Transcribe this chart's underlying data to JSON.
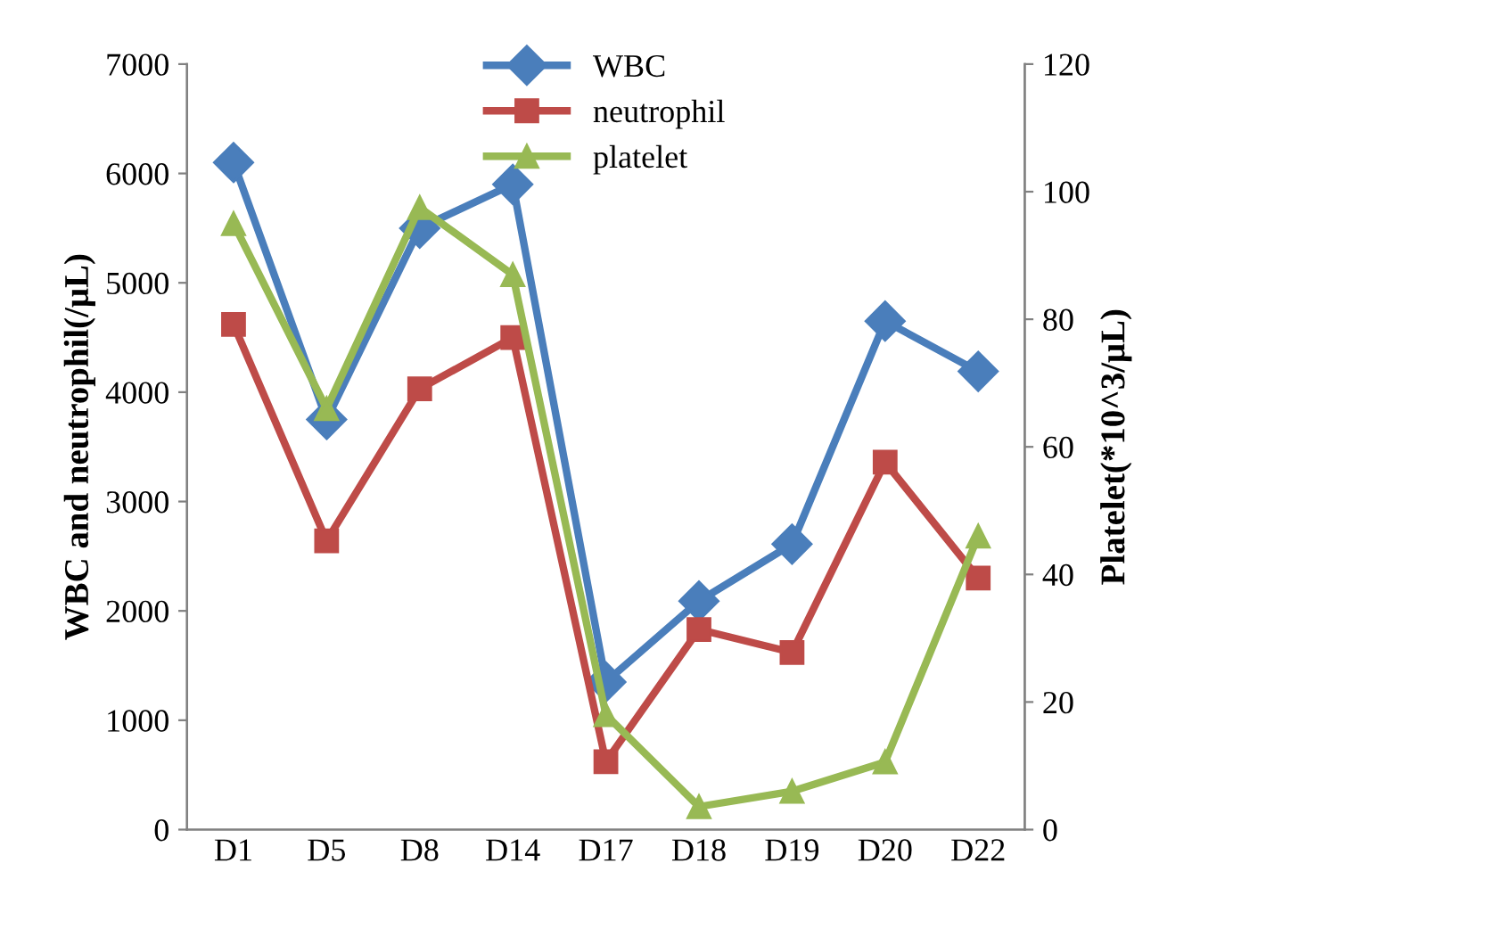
{
  "chart_data": {
    "type": "line",
    "categories": [
      "D1",
      "D5",
      "D8",
      "D14",
      "D17",
      "D18",
      "D19",
      "D20",
      "D22"
    ],
    "ylabel": "WBC and neutrophil(/μL)",
    "y2label": "Platelet(*10^3/μL)",
    "ylim": [
      0,
      7000
    ],
    "yticks": [
      0,
      1000,
      2000,
      3000,
      4000,
      5000,
      6000,
      7000
    ],
    "y2lim": [
      0,
      120
    ],
    "y2ticks": [
      0,
      20,
      40,
      60,
      80,
      100,
      120
    ],
    "grid": false,
    "legend": "top",
    "line_style": "solid",
    "series": [
      {
        "name": "WBC",
        "color": "#4a7ebb",
        "marker": "diamond",
        "values": [
          6100,
          3750,
          5500,
          5900,
          1350,
          2090,
          2610,
          4650,
          4190
        ]
      },
      {
        "name": "neutrophil",
        "color": "#be4b48",
        "marker": "square",
        "values": [
          4620,
          2640,
          4030,
          4500,
          620,
          1830,
          1620,
          3360,
          2300
        ]
      },
      {
        "name": "platelet",
        "color": "#98b954",
        "marker": "triangle",
        "axis": "y2",
        "values": [
          95,
          66,
          97.5,
          87,
          18,
          3.6,
          6,
          10.6,
          46
        ]
      }
    ]
  }
}
